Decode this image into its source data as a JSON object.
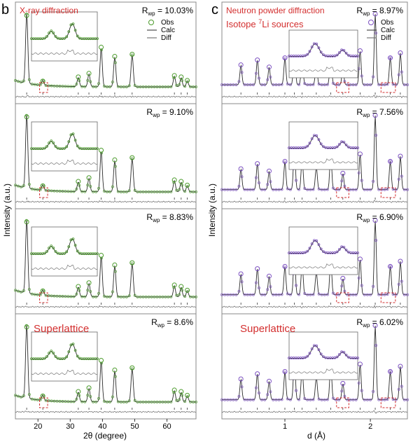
{
  "figure": {
    "left": {
      "panel_letter": "b",
      "subpanel_titles": [
        "X-ray diffraction",
        "",
        "",
        "Superlattice"
      ],
      "rwp_labels": [
        "10.03%",
        "9.10%",
        "8.83%",
        "8.6%"
      ],
      "rwp_prefix": "R",
      "rwp_sub": "wp",
      "rwp_eq": " = ",
      "ylabel": "Intensity (a.u.)",
      "xlabel": "2θ (degree)",
      "xticks": [
        "20",
        "30",
        "40",
        "50",
        "60"
      ],
      "legend": [
        "Obs",
        "Calc",
        "Diff"
      ],
      "colors": {
        "obs": "#4a9a2a",
        "calc": "#2a2a2a",
        "diff": "#777777",
        "accent": "#d32f2f"
      }
    },
    "right": {
      "panel_letter": "c",
      "title_line1": "Neutron powder diffraction",
      "title_line2_pre": "Isotope ",
      "title_line2_sup": "7",
      "title_line2_post": "Li sources",
      "subpanel_titles": [
        "",
        "",
        "",
        "Superlattice"
      ],
      "rwp_labels": [
        "8.97%",
        "7.56%",
        "6.90%",
        "6.02%"
      ],
      "ylabel": "Intensity (a.u.)",
      "xlabel": "d (Å)",
      "xticks": [
        "1",
        "2"
      ],
      "legend": [
        "Obs",
        "Calc",
        "Diff"
      ],
      "colors": {
        "obs": "#7b4fc0",
        "calc": "#2a2a2a",
        "diff": "#777777",
        "accent": "#d32f2f"
      }
    }
  },
  "chart_data": [
    {
      "type": "line",
      "panel": "b",
      "xlabel": "2θ (degree)",
      "ylabel": "Intensity (a.u.)",
      "xlim": [
        13,
        69
      ],
      "series": [
        {
          "name": "Obs"
        },
        {
          "name": "Calc"
        },
        {
          "name": "Diff"
        }
      ],
      "peaks_2theta": [
        16.5,
        21.5,
        32.5,
        35.8,
        39.6,
        43.8,
        49.2,
        62.3,
        64.4,
        66.3
      ],
      "subplots": [
        {
          "rwp": "10.03%",
          "title": "X-ray diffraction"
        },
        {
          "rwp": "9.10%"
        },
        {
          "rwp": "8.83%"
        },
        {
          "rwp": "8.6%",
          "title": "Superlattice"
        }
      ]
    },
    {
      "type": "line",
      "panel": "c",
      "xlabel": "d (Å)",
      "ylabel": "Intensity (a.u.)",
      "x_scale": "log",
      "xlim": [
        0.6,
        2.7
      ],
      "series": [
        {
          "name": "Obs"
        },
        {
          "name": "Calc"
        },
        {
          "name": "Diff"
        }
      ],
      "peaks_d": [
        0.7,
        0.8,
        0.88,
        1.0,
        1.08,
        1.15,
        1.29,
        1.45,
        1.6,
        1.84,
        2.08,
        2.35,
        2.55
      ],
      "subplots": [
        {
          "rwp": "8.97%",
          "title": "Neutron powder diffraction / Isotope 7Li sources"
        },
        {
          "rwp": "7.56%"
        },
        {
          "rwp": "6.90%"
        },
        {
          "rwp": "6.02%",
          "title": "Superlattice"
        }
      ]
    }
  ]
}
